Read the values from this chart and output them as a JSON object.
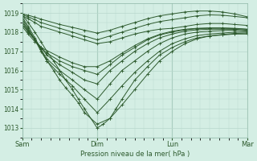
{
  "title": "",
  "xlabel": "Pression niveau de la mer( hPa )",
  "ylabel": "",
  "bg_color": "#d4eee4",
  "grid_color": "#b8d8cc",
  "line_color": "#2d5a2d",
  "ylim": [
    1012.5,
    1019.5
  ],
  "yticks": [
    1013,
    1014,
    1015,
    1016,
    1017,
    1018,
    1019
  ],
  "xlim": [
    0,
    3.0
  ],
  "day_ticks": [
    0,
    1,
    2,
    3
  ],
  "day_labels": [
    "Sam",
    "Dim",
    "Lun",
    "Mar"
  ],
  "x_total_days": 3.0,
  "lines": [
    {
      "x": [
        0.0,
        0.08,
        0.17,
        0.25,
        0.33,
        0.42,
        0.5,
        0.58,
        0.67,
        0.75,
        0.83,
        1.0,
        1.08,
        1.17,
        1.25,
        1.33,
        1.5,
        1.67,
        1.83,
        2.0,
        2.17,
        2.33,
        2.5,
        2.67,
        2.83,
        3.0
      ],
      "y": [
        1018.9,
        1018.5,
        1018.0,
        1017.5,
        1017.0,
        1016.5,
        1016.0,
        1015.5,
        1015.0,
        1014.5,
        1014.0,
        1013.0,
        1013.2,
        1013.5,
        1014.0,
        1014.5,
        1015.5,
        1016.2,
        1016.8,
        1017.2,
        1017.5,
        1017.7,
        1017.8,
        1017.85,
        1017.9,
        1017.9
      ]
    },
    {
      "x": [
        0.0,
        0.08,
        0.17,
        0.25,
        0.33,
        0.42,
        0.5,
        0.58,
        0.67,
        0.75,
        0.83,
        1.0,
        1.17,
        1.33,
        1.5,
        1.67,
        1.83,
        2.0,
        2.17,
        2.33,
        2.5,
        2.67,
        2.83,
        3.0
      ],
      "y": [
        1018.8,
        1018.3,
        1017.7,
        1017.1,
        1016.5,
        1016.0,
        1015.5,
        1015.1,
        1014.7,
        1014.3,
        1013.8,
        1013.2,
        1013.5,
        1014.2,
        1015.0,
        1015.8,
        1016.5,
        1017.0,
        1017.4,
        1017.65,
        1017.8,
        1017.88,
        1017.93,
        1017.95
      ]
    },
    {
      "x": [
        0.0,
        0.08,
        0.17,
        0.25,
        0.33,
        0.5,
        0.67,
        0.83,
        1.0,
        1.17,
        1.33,
        1.5,
        1.67,
        1.83,
        2.0,
        2.17,
        2.33,
        2.5,
        2.67,
        2.83,
        3.0
      ],
      "y": [
        1018.7,
        1018.2,
        1017.6,
        1017.0,
        1016.5,
        1015.8,
        1015.2,
        1014.5,
        1013.8,
        1014.5,
        1015.2,
        1015.9,
        1016.5,
        1017.0,
        1017.4,
        1017.65,
        1017.82,
        1017.9,
        1017.95,
        1018.0,
        1018.0
      ]
    },
    {
      "x": [
        0.0,
        0.08,
        0.17,
        0.25,
        0.33,
        0.5,
        0.67,
        0.83,
        1.0,
        1.17,
        1.33,
        1.5,
        1.67,
        1.83,
        2.0,
        2.17,
        2.33,
        2.5,
        2.67,
        2.83,
        3.0
      ],
      "y": [
        1018.6,
        1018.1,
        1017.6,
        1017.1,
        1016.6,
        1016.0,
        1015.5,
        1015.0,
        1014.5,
        1015.3,
        1016.0,
        1016.5,
        1017.0,
        1017.4,
        1017.7,
        1017.9,
        1018.0,
        1018.05,
        1018.08,
        1018.1,
        1018.05
      ]
    },
    {
      "x": [
        0.0,
        0.08,
        0.17,
        0.25,
        0.33,
        0.5,
        0.67,
        0.83,
        1.0,
        1.17,
        1.33,
        1.5,
        1.67,
        1.83,
        2.0,
        2.17,
        2.33,
        2.5,
        2.67,
        2.83,
        3.0
      ],
      "y": [
        1018.5,
        1018.05,
        1017.6,
        1017.2,
        1016.8,
        1016.3,
        1015.9,
        1015.5,
        1015.3,
        1016.0,
        1016.5,
        1017.0,
        1017.4,
        1017.7,
        1017.9,
        1018.05,
        1018.12,
        1018.15,
        1018.15,
        1018.15,
        1018.1
      ]
    },
    {
      "x": [
        0.0,
        0.08,
        0.17,
        0.25,
        0.33,
        0.5,
        0.67,
        0.83,
        1.0,
        1.17,
        1.33,
        1.5,
        1.67,
        1.83,
        2.0,
        2.17,
        2.33,
        2.5,
        2.67,
        2.83,
        3.0
      ],
      "y": [
        1018.4,
        1018.0,
        1017.6,
        1017.2,
        1016.9,
        1016.5,
        1016.2,
        1016.0,
        1015.8,
        1016.3,
        1016.8,
        1017.2,
        1017.6,
        1017.85,
        1018.0,
        1018.12,
        1018.18,
        1018.2,
        1018.2,
        1018.18,
        1018.15
      ]
    },
    {
      "x": [
        0.0,
        0.08,
        0.17,
        0.25,
        0.5,
        0.67,
        0.83,
        1.0,
        1.17,
        1.33,
        1.5,
        1.67,
        1.83,
        2.0,
        2.17,
        2.33,
        2.5,
        2.67,
        2.83,
        3.0
      ],
      "y": [
        1018.3,
        1017.9,
        1017.5,
        1017.2,
        1016.7,
        1016.4,
        1016.2,
        1016.2,
        1016.5,
        1016.9,
        1017.3,
        1017.65,
        1017.88,
        1018.05,
        1018.15,
        1018.2,
        1018.22,
        1018.22,
        1018.2,
        1018.15
      ]
    },
    {
      "x": [
        0.0,
        0.08,
        0.17,
        0.25,
        0.5,
        0.67,
        0.83,
        1.0,
        1.17,
        1.33,
        1.5,
        1.67,
        1.83,
        2.0,
        2.17,
        2.33,
        2.5,
        2.67,
        2.83,
        3.0
      ],
      "y": [
        1018.85,
        1018.7,
        1018.5,
        1018.3,
        1018.0,
        1017.8,
        1017.6,
        1017.4,
        1017.5,
        1017.7,
        1017.9,
        1018.05,
        1018.15,
        1018.2,
        1018.3,
        1018.4,
        1018.45,
        1018.45,
        1018.4,
        1018.35
      ]
    },
    {
      "x": [
        0.0,
        0.08,
        0.17,
        0.25,
        0.5,
        0.67,
        0.83,
        1.0,
        1.17,
        1.33,
        1.5,
        1.67,
        1.83,
        2.0,
        2.17,
        2.33,
        2.5,
        2.67,
        2.83,
        3.0
      ],
      "y": [
        1018.9,
        1018.8,
        1018.65,
        1018.5,
        1018.2,
        1018.0,
        1017.8,
        1017.6,
        1017.8,
        1018.0,
        1018.2,
        1018.4,
        1018.55,
        1018.65,
        1018.75,
        1018.85,
        1018.9,
        1018.88,
        1018.82,
        1018.75
      ]
    },
    {
      "x": [
        0.0,
        0.08,
        0.17,
        0.25,
        0.5,
        0.67,
        0.83,
        1.0,
        1.17,
        1.33,
        1.5,
        1.67,
        1.83,
        2.0,
        2.17,
        2.33,
        2.5,
        2.67,
        2.83,
        3.0
      ],
      "y": [
        1018.95,
        1018.88,
        1018.78,
        1018.68,
        1018.4,
        1018.25,
        1018.1,
        1017.95,
        1018.1,
        1018.3,
        1018.5,
        1018.7,
        1018.85,
        1018.95,
        1019.05,
        1019.1,
        1019.1,
        1019.05,
        1018.95,
        1018.8
      ]
    }
  ]
}
